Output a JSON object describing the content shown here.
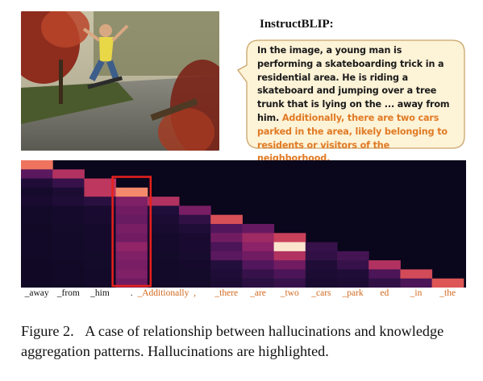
{
  "figure": {
    "model_label": "InstructBLIP:",
    "response_plain": "In the image, a young man is performing a skateboarding trick in a residential area. He is riding a skateboard and jumping over a tree trunk that is lying on the ... away from him.",
    "response_hallucinated": "Additionally, there are two cars parked in the area, likely belonging to residents or visitors of the neighborhood.",
    "colors": {
      "hallucination_text": "#e07a24",
      "highlight_box": "#e8201c",
      "bubble_fill": "#fdf3d7",
      "bubble_stroke": "#c9a46a"
    },
    "tokens": [
      {
        "label": "_away",
        "hallucinated": false
      },
      {
        "label": "_from",
        "hallucinated": false
      },
      {
        "label": "_him",
        "hallucinated": false
      },
      {
        "label": ".",
        "hallucinated": false
      },
      {
        "label": "_Additionally",
        "hallucinated": true
      },
      {
        "label": ",",
        "hallucinated": true
      },
      {
        "label": "_there",
        "hallucinated": true
      },
      {
        "label": "_are",
        "hallucinated": true
      },
      {
        "label": "_two",
        "hallucinated": true
      },
      {
        "label": "_cars",
        "hallucinated": true
      },
      {
        "label": "_park",
        "hallucinated": true
      },
      {
        "label": "ed",
        "hallucinated": true
      },
      {
        "label": "_in",
        "hallucinated": true
      },
      {
        "label": "_the",
        "hallucinated": true
      }
    ],
    "caption_number": "Figure 2.",
    "caption_text": "A case of relationship between hallucinations and knowledge aggregation patterns. Hallucinations are highlighted."
  },
  "chart_data": {
    "type": "heatmap",
    "colormap": "magma",
    "rows": 14,
    "cols": 14,
    "highlighted_column": 3,
    "values": [
      [
        0.78,
        0,
        0,
        0,
        0,
        0,
        0,
        0,
        0,
        0,
        0,
        0,
        0,
        0
      ],
      [
        0.32,
        0.55,
        0,
        0,
        0,
        0,
        0,
        0,
        0,
        0,
        0,
        0,
        0,
        0
      ],
      [
        0.14,
        0.22,
        0.58,
        0,
        0,
        0,
        0,
        0,
        0,
        0,
        0,
        0,
        0,
        0
      ],
      [
        0.08,
        0.12,
        0.58,
        0.82,
        0,
        0,
        0,
        0,
        0,
        0,
        0,
        0,
        0,
        0
      ],
      [
        0.1,
        0.14,
        0.18,
        0.42,
        0.55,
        0,
        0,
        0,
        0,
        0,
        0,
        0,
        0,
        0
      ],
      [
        0.06,
        0.08,
        0.1,
        0.38,
        0.15,
        0.4,
        0,
        0,
        0,
        0,
        0,
        0,
        0,
        0
      ],
      [
        0.06,
        0.08,
        0.1,
        0.36,
        0.12,
        0.2,
        0.68,
        0,
        0,
        0,
        0,
        0,
        0,
        0
      ],
      [
        0.05,
        0.07,
        0.08,
        0.4,
        0.1,
        0.14,
        0.3,
        0.35,
        0,
        0,
        0,
        0,
        0,
        0
      ],
      [
        0.05,
        0.06,
        0.08,
        0.38,
        0.08,
        0.1,
        0.38,
        0.5,
        0.62,
        0,
        0,
        0,
        0,
        0
      ],
      [
        0.05,
        0.06,
        0.08,
        0.46,
        0.08,
        0.1,
        0.28,
        0.45,
        0.97,
        0.22,
        0,
        0,
        0,
        0
      ],
      [
        0.05,
        0.06,
        0.07,
        0.42,
        0.07,
        0.09,
        0.32,
        0.38,
        0.55,
        0.2,
        0.26,
        0,
        0,
        0
      ],
      [
        0.04,
        0.05,
        0.07,
        0.4,
        0.06,
        0.08,
        0.16,
        0.3,
        0.38,
        0.14,
        0.22,
        0.55,
        0,
        0
      ],
      [
        0.04,
        0.05,
        0.06,
        0.42,
        0.06,
        0.07,
        0.14,
        0.22,
        0.28,
        0.12,
        0.14,
        0.28,
        0.66,
        0
      ],
      [
        0.04,
        0.05,
        0.06,
        0.38,
        0.06,
        0.07,
        0.12,
        0.18,
        0.22,
        0.1,
        0.12,
        0.2,
        0.28,
        0.7
      ]
    ]
  }
}
